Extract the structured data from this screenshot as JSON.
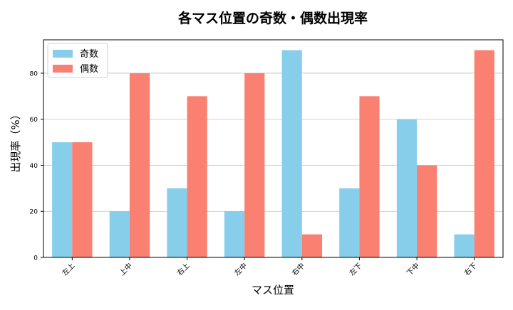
{
  "chart_data": {
    "type": "bar",
    "title": "各マス位置の奇数・偶数出現率",
    "xlabel": "マス位置",
    "ylabel": "出現率（%）",
    "categories": [
      "左上",
      "上中",
      "右上",
      "左中",
      "右中",
      "左下",
      "下中",
      "右下"
    ],
    "series": [
      {
        "name": "奇数",
        "color": "#87CEEB",
        "values": [
          50,
          20,
          30,
          20,
          90,
          30,
          60,
          10
        ]
      },
      {
        "name": "偶数",
        "color": "#FA8072",
        "values": [
          50,
          80,
          70,
          80,
          10,
          70,
          40,
          90
        ]
      }
    ],
    "ylim": [
      0,
      94.5
    ],
    "yticks": [
      0,
      20,
      40,
      60,
      80
    ],
    "grid": "y",
    "legend": "top-left"
  }
}
